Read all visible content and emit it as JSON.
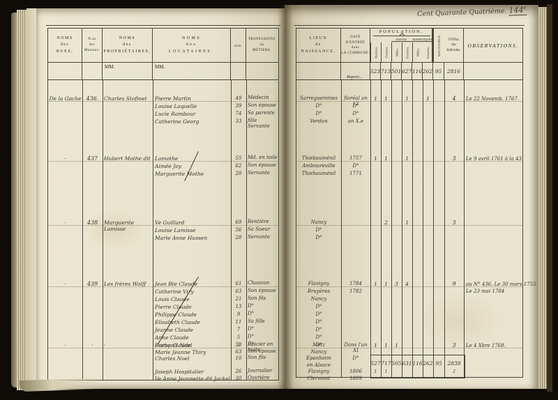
{
  "page_title": {
    "main": "Cent Quarante Quatrième.",
    "number": "144",
    "suffix": "e"
  },
  "left_table": {
    "col_rues": "NOMS\ndes\nRUES.",
    "col_maisons": "N.os\ndes\nMaisons.",
    "col_proprietaires": "NOMS\ndes\nPROPRIÉTAIRES.",
    "col_locataires": "NOMS\ndes\nLOCATAIRES.",
    "col_age": "AGE.",
    "col_professions": "PROFESSIONS\nou\nMÉTIERS.",
    "mm_proprietaires": "MM.",
    "mm_locataires": "MM."
  },
  "right_table": {
    "col_lieux": "LIEUX\nde\nNAISSANCE.",
    "col_date": "DATE\nD'ENTRÉE\ndans\nLA COMMUNE.",
    "col_population": "POPULATION.",
    "col_enfans": "ENFANS.",
    "col_domestiques": "DOMESTIQUES.",
    "pop_subcols": [
      "Hommes.",
      "Femmes.",
      "Mâles.",
      "Femelles.",
      "Mâles.",
      "Femelles."
    ],
    "col_militaires": "MILITAIRES.",
    "col_total": "TOTAL\ndes\nIndividus.",
    "col_observations": "OBSERVATIONS.",
    "report_label": "Report...",
    "report_values": [
      "523",
      "713",
      "501",
      "627",
      "116",
      "262"
    ],
    "report_militaires": "95",
    "report_total": "2816",
    "totals_values": [
      "527",
      "717",
      "505",
      "631",
      "116",
      "262"
    ],
    "totals_militaires": "95",
    "totals_total": "2838",
    "totals_submarks": [
      "1",
      "1",
      "",
      "",
      "",
      ""
    ],
    "totals_total_submark": "2"
  },
  "entries": [
    {
      "street": "De la Gache",
      "house_no": "436.",
      "proprietor": "Charles Stofinet",
      "tenants": [
        {
          "name": "Pierre Martin",
          "age": "49",
          "profession": "Médecin"
        },
        {
          "name": "Louise Laquelle",
          "age": "39",
          "profession": "Son épouse"
        },
        {
          "name": "Lucie Rambour",
          "age": "74",
          "profession": "Sa parente"
        },
        {
          "name": "Catherine Georg",
          "age": "33",
          "profession": "fille Servante"
        }
      ],
      "birthplaces": [
        "Sarreguemines",
        "D°",
        "D°",
        "Verdun"
      ],
      "entry_dates": [
        "floréal an 12",
        "D°",
        "D°",
        "an X.e"
      ],
      "population": [
        "1",
        "1",
        "",
        "1",
        "",
        "1"
      ],
      "militaires": "",
      "total": "4",
      "observations": "Le 22 Novemb. 1767.",
      "crossed_out": false
    },
    {
      "street": "·",
      "house_no": "437",
      "proprietor": "Hubert Mothe dit",
      "tenants": [
        {
          "name": "Lamothe",
          "age": "55",
          "profession": "Md. en toile"
        },
        {
          "name": "Aimée Joy",
          "age": "62",
          "profession": "Son épouse"
        },
        {
          "name": "Marguerite Mothe",
          "age": "20",
          "profession": "Servante"
        }
      ],
      "birthplaces": [
        "Thiebauménil",
        "Amboureville",
        "Thiebauménil"
      ],
      "entry_dates": [
        "1757",
        "D°",
        "1771"
      ],
      "population": [
        "1",
        "1",
        "",
        "1",
        "",
        ""
      ],
      "militaires": "",
      "total": "3",
      "observations": "Le 9 avril 1761 à la 43",
      "crossed_out": true
    },
    {
      "street": "·",
      "house_no": "438",
      "proprietor": "Marguerite Lamisse",
      "tenants": [
        {
          "name": "Ve Guillard",
          "age": "69",
          "profession": "Rentière"
        },
        {
          "name": "Louise Lamisse",
          "age": "56",
          "profession": "Sa Soeur"
        },
        {
          "name": "Marie Anne Hussen",
          "age": "28",
          "profession": "Servante"
        }
      ],
      "birthplaces": [
        "Nancy",
        "D°",
        "D°"
      ],
      "entry_dates": [],
      "population": [
        "",
        "2",
        "",
        "1",
        "",
        ""
      ],
      "militaires": "",
      "total": "3",
      "observations": "",
      "crossed_out": false
    },
    {
      "street": "·",
      "house_no": "439",
      "proprietor": "Les frères Wolff",
      "tenants": [
        {
          "name": "Jean Bte Claude",
          "age": "61",
          "profession": "Chauvon"
        },
        {
          "name": "Catherine Viry",
          "age": "63",
          "profession": "Son épouse"
        },
        {
          "name": "Louis Claude",
          "age": "21",
          "profession": "Son fils"
        },
        {
          "name": "Pierre Claude",
          "age": "13",
          "profession": "D°"
        },
        {
          "name": "Philippe Claude",
          "age": "9",
          "profession": "D°"
        },
        {
          "name": "Elisabeth Claude",
          "age": "11",
          "profession": "Sa fille"
        },
        {
          "name": "Jeanne Claude",
          "age": "7",
          "profession": "D°"
        },
        {
          "name": "Anne Claude",
          "age": "5",
          "profession": "D°"
        },
        {
          "name": "Barbe Claude",
          "age": "3",
          "profession": "D°"
        }
      ],
      "birthplaces": [
        "Flavigny",
        "Bruyères",
        "Nancy",
        "D°",
        "D°",
        "D°",
        "D°",
        "D°",
        "D°"
      ],
      "entry_dates": [
        "1784",
        "1782"
      ],
      "population": [
        "1",
        "1",
        "3",
        "4",
        "",
        ""
      ],
      "militaires": "",
      "total": "9",
      "observations": "au N° 436. Le 30 mars 1755\nLe 23 mai 1784",
      "crossed_out": true
    },
    {
      "street": "·",
      "house_no": "·",
      "proprietor": "·",
      "tenants": [
        {
          "name": "François Noel",
          "age": "53",
          "profession": "Épicier en\nhuile"
        },
        {
          "name": "Marie Jeanne Thiry",
          "age": "63",
          "profession": "Son épouse"
        },
        {
          "name": "Charles Noel",
          "age": "10",
          "profession": "Son fils"
        },
        {
          "name": "",
          "age": "",
          "profession": ""
        },
        {
          "name": "Joseph Hospitalier",
          "age": "26",
          "profession": "Journalier"
        },
        {
          "name": "Ve Anne Jeannette dit Jackel",
          "age": "30",
          "profession": "Ouvrière"
        }
      ],
      "birthplaces": [
        "Metz",
        "Nancy",
        "Epanheim",
        "en Alsace",
        "Flavigny",
        "Clermont"
      ],
      "entry_dates": [
        "Dans l'an XI",
        "",
        "D°",
        "",
        "1806",
        "1809"
      ],
      "population": [
        "1",
        "1",
        "1",
        "",
        "",
        ""
      ],
      "militaires": "",
      "total": "3",
      "observations": "Le 4 Xbre 1768.",
      "crossed_out": false
    }
  ]
}
